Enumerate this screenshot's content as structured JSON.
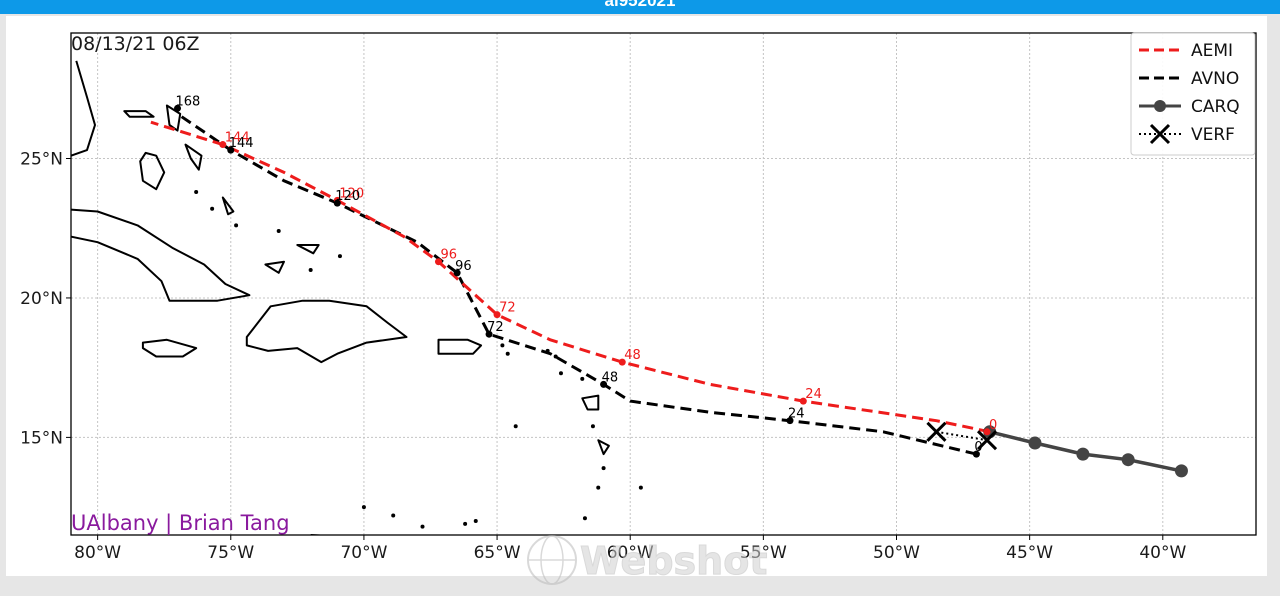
{
  "header": {
    "title": "al952021"
  },
  "map": {
    "timestamp": "08/13/21 06Z",
    "credit": "UAlbany | Brian Tang",
    "watermark": "Webshot",
    "lon_range": [
      -81,
      -36.5
    ],
    "lat_range": [
      11.5,
      29.5
    ],
    "x_ticks": [
      {
        "lon": -80,
        "label": "80°W"
      },
      {
        "lon": -75,
        "label": "75°W"
      },
      {
        "lon": -70,
        "label": "70°W"
      },
      {
        "lon": -65,
        "label": "65°W"
      },
      {
        "lon": -60,
        "label": "60°W"
      },
      {
        "lon": -55,
        "label": "55°W"
      },
      {
        "lon": -50,
        "label": "50°W"
      },
      {
        "lon": -45,
        "label": "45°W"
      },
      {
        "lon": -40,
        "label": "40°W"
      }
    ],
    "y_ticks": [
      {
        "lat": 25,
        "label": "25°N"
      },
      {
        "lat": 20,
        "label": "20°N"
      },
      {
        "lat": 15,
        "label": "15°N"
      }
    ],
    "grid": true,
    "legend_position": "top-right",
    "legend": [
      {
        "key": "aemi",
        "label": "AEMI",
        "color": "#ee1c1c",
        "style": "dashed"
      },
      {
        "key": "avno",
        "label": "AVNO",
        "color": "#000000",
        "style": "dashed"
      },
      {
        "key": "carq",
        "label": "CARQ",
        "color": "#444444",
        "style": "solid-markers"
      },
      {
        "key": "verf",
        "label": "VERF",
        "color": "#000000",
        "style": "dotted-x"
      }
    ],
    "tracks": {
      "aemi": {
        "color": "#ee1c1c",
        "points": [
          [
            -46.5,
            15.2
          ],
          [
            -48.5,
            15.6
          ],
          [
            -53.5,
            16.3
          ],
          [
            -57,
            16.9
          ],
          [
            -60.3,
            17.7
          ],
          [
            -63,
            18.5
          ],
          [
            -65,
            19.4
          ],
          [
            -67.2,
            21.3
          ],
          [
            -68.5,
            22.2
          ],
          [
            -71,
            23.5
          ],
          [
            -73,
            24.5
          ],
          [
            -75.3,
            25.5
          ],
          [
            -78,
            26.3
          ]
        ],
        "labeled": [
          {
            "lon": -53.5,
            "lat": 16.3,
            "label": "24"
          },
          {
            "lon": -60.3,
            "lat": 17.7,
            "label": "48"
          },
          {
            "lon": -65,
            "lat": 19.4,
            "label": "72"
          },
          {
            "lon": -67.2,
            "lat": 21.3,
            "label": "96"
          },
          {
            "lon": -71,
            "lat": 23.5,
            "label": "120"
          },
          {
            "lon": -75.3,
            "lat": 25.5,
            "label": "144"
          },
          {
            "lon": -46.6,
            "lat": 15.2,
            "label": "0"
          }
        ]
      },
      "avno": {
        "color": "#000000",
        "points": [
          [
            -47,
            14.4
          ],
          [
            -50.5,
            15.2
          ],
          [
            -54,
            15.6
          ],
          [
            -57,
            15.9
          ],
          [
            -60,
            16.3
          ],
          [
            -61,
            16.9
          ],
          [
            -63,
            18
          ],
          [
            -65.3,
            18.7
          ],
          [
            -66.5,
            20.9
          ],
          [
            -68,
            22
          ],
          [
            -71,
            23.4
          ],
          [
            -73,
            24.2
          ],
          [
            -75,
            25.3
          ],
          [
            -77,
            26.6
          ]
        ],
        "labeled": [
          {
            "lon": -54,
            "lat": 15.6,
            "label": "24"
          },
          {
            "lon": -61,
            "lat": 16.9,
            "label": "48"
          },
          {
            "lon": -65.3,
            "lat": 18.7,
            "label": "72"
          },
          {
            "lon": -66.5,
            "lat": 20.9,
            "label": "96"
          },
          {
            "lon": -71,
            "lat": 23.4,
            "label": "120"
          },
          {
            "lon": -75,
            "lat": 25.3,
            "label": "144"
          },
          {
            "lon": -77,
            "lat": 26.8,
            "label": "168"
          },
          {
            "lon": -47,
            "lat": 14.4,
            "label": "0"
          }
        ]
      },
      "carq": {
        "color": "#444444",
        "points": [
          [
            -39.3,
            13.8
          ],
          [
            -41.3,
            14.2
          ],
          [
            -43,
            14.4
          ],
          [
            -44.8,
            14.8
          ],
          [
            -46.5,
            15.2
          ]
        ]
      },
      "verf": {
        "color": "#000000",
        "points": [
          [
            -48.5,
            15.2
          ],
          [
            -46.6,
            14.9
          ]
        ]
      }
    }
  }
}
